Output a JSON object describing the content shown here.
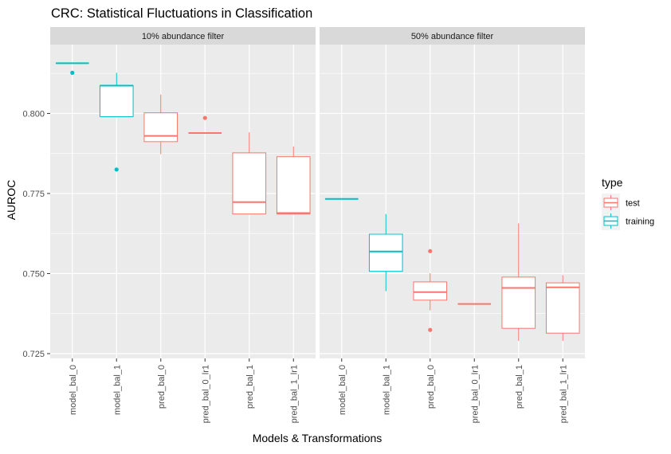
{
  "chart_data": {
    "type": "boxplot",
    "title": "CRC: Statistical Fluctuations in Classification",
    "xlabel": "Models & Transformations",
    "ylabel": "AUROC",
    "ylim": [
      0.7235,
      0.8215
    ],
    "yticks": [
      "0.725",
      "0.750",
      "0.775",
      "0.800"
    ],
    "ytick_values": [
      0.725,
      0.75,
      0.775,
      0.8
    ],
    "grid": true,
    "legend_position": "right",
    "legend_title": "type",
    "series": [
      {
        "name": "test",
        "color": "#F8766D"
      },
      {
        "name": "training",
        "color": "#00BFC4"
      }
    ],
    "categories": [
      "model_bal_0",
      "model_bal_1",
      "pred_bal_0",
      "pred_bal_0_lr1",
      "pred_bal_1",
      "pred_bal_1_lr1"
    ],
    "facets": [
      {
        "title": "10% abundance filter",
        "boxes": [
          {
            "category": "model_bal_0",
            "type": "training",
            "min": 0.8157,
            "q1": 0.8157,
            "median": 0.8157,
            "q3": 0.8157,
            "max": 0.8157,
            "outliers": [
              0.8127
            ]
          },
          {
            "category": "model_bal_1",
            "type": "training",
            "min": 0.799,
            "q1": 0.799,
            "median": 0.8087,
            "q3": 0.8087,
            "max": 0.8127,
            "outliers": [
              0.7825
            ]
          },
          {
            "category": "pred_bal_0",
            "type": "test",
            "min": 0.7873,
            "q1": 0.7912,
            "median": 0.793,
            "q3": 0.8002,
            "max": 0.8059,
            "outliers": []
          },
          {
            "category": "pred_bal_0_lr1",
            "type": "test",
            "min": 0.7939,
            "q1": 0.7939,
            "median": 0.7939,
            "q3": 0.7939,
            "max": 0.7939,
            "outliers": [
              0.7986
            ]
          },
          {
            "category": "pred_bal_1",
            "type": "test",
            "min": 0.7686,
            "q1": 0.7686,
            "median": 0.7723,
            "q3": 0.7877,
            "max": 0.7941,
            "outliers": []
          },
          {
            "category": "pred_bal_1_lr1",
            "type": "test",
            "min": 0.7686,
            "q1": 0.7686,
            "median": 0.7689,
            "q3": 0.7865,
            "max": 0.7897,
            "outliers": []
          }
        ]
      },
      {
        "title": "50% abundance filter",
        "boxes": [
          {
            "category": "model_bal_0",
            "type": "training",
            "min": 0.7733,
            "q1": 0.7733,
            "median": 0.7733,
            "q3": 0.7733,
            "max": 0.7733,
            "outliers": []
          },
          {
            "category": "model_bal_1",
            "type": "training",
            "min": 0.7445,
            "q1": 0.7507,
            "median": 0.7569,
            "q3": 0.7623,
            "max": 0.7686,
            "outliers": []
          },
          {
            "category": "pred_bal_0",
            "type": "test",
            "min": 0.7385,
            "q1": 0.7417,
            "median": 0.7442,
            "q3": 0.7474,
            "max": 0.7501,
            "outliers": [
              0.757,
              0.7324
            ]
          },
          {
            "category": "pred_bal_0_lr1",
            "type": "test",
            "min": 0.7405,
            "q1": 0.7405,
            "median": 0.7405,
            "q3": 0.7405,
            "max": 0.7405,
            "outliers": []
          },
          {
            "category": "pred_bal_1",
            "type": "test",
            "min": 0.729,
            "q1": 0.7329,
            "median": 0.7455,
            "q3": 0.7489,
            "max": 0.7657,
            "outliers": []
          },
          {
            "category": "pred_bal_1_lr1",
            "type": "test",
            "min": 0.729,
            "q1": 0.7314,
            "median": 0.7457,
            "q3": 0.7471,
            "max": 0.7495,
            "outliers": []
          }
        ]
      }
    ]
  }
}
